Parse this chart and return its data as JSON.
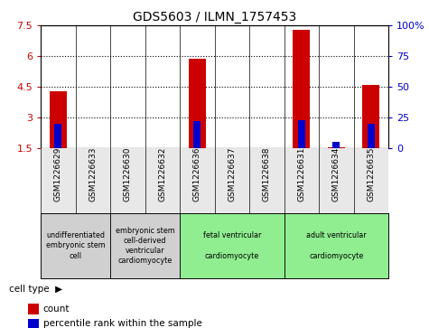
{
  "title": "GDS5603 / ILMN_1757453",
  "samples": [
    "GSM1226629",
    "GSM1226633",
    "GSM1226630",
    "GSM1226632",
    "GSM1226636",
    "GSM1226637",
    "GSM1226638",
    "GSM1226631",
    "GSM1226634",
    "GSM1226635"
  ],
  "count_values": [
    4.3,
    1.5,
    1.5,
    1.5,
    5.85,
    1.5,
    1.5,
    7.3,
    1.55,
    4.6
  ],
  "percentile_values": [
    20,
    0,
    0,
    0,
    22,
    0,
    0,
    23,
    5,
    20
  ],
  "ylim_left": [
    1.5,
    7.5
  ],
  "ylim_right": [
    0,
    100
  ],
  "yticks_left": [
    1.5,
    3.0,
    4.5,
    6.0,
    7.5
  ],
  "yticks_right": [
    0,
    25,
    50,
    75,
    100
  ],
  "ytick_labels_left": [
    "1.5",
    "3",
    "4.5",
    "6",
    "7.5"
  ],
  "ytick_labels_right": [
    "0",
    "25",
    "50",
    "75",
    "100%"
  ],
  "cell_types": [
    {
      "label": "undifferentiated\nembryonic stem\ncell",
      "span": [
        0,
        2
      ],
      "color": "#d0d0d0"
    },
    {
      "label": "embryonic stem\ncell-derived\nventricular\ncardiomyocyte",
      "span": [
        2,
        4
      ],
      "color": "#d0d0d0"
    },
    {
      "label": "fetal ventricular\n\ncardiomyocyte",
      "span": [
        4,
        7
      ],
      "color": "#90ee90"
    },
    {
      "label": "adult ventricular\n\ncardiomyocyte",
      "span": [
        7,
        10
      ],
      "color": "#90ee90"
    }
  ],
  "bar_width": 0.5,
  "blue_bar_width": 0.2,
  "count_color": "#cc0000",
  "percentile_color": "#0000cc",
  "bg_color": "#ffffff",
  "ylabel_left_color": "#cc0000",
  "ylabel_right_color": "#0000cc",
  "cell_type_label": "cell type",
  "legend_count": "count",
  "legend_pct": "percentile rank within the sample"
}
